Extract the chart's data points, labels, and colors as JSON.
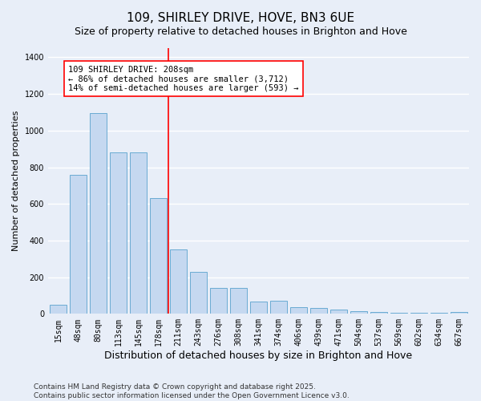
{
  "title": "109, SHIRLEY DRIVE, HOVE, BN3 6UE",
  "subtitle": "Size of property relative to detached houses in Brighton and Hove",
  "xlabel": "Distribution of detached houses by size in Brighton and Hove",
  "ylabel": "Number of detached properties",
  "categories": [
    "15sqm",
    "48sqm",
    "80sqm",
    "113sqm",
    "145sqm",
    "178sqm",
    "211sqm",
    "243sqm",
    "276sqm",
    "308sqm",
    "341sqm",
    "374sqm",
    "406sqm",
    "439sqm",
    "471sqm",
    "504sqm",
    "537sqm",
    "569sqm",
    "602sqm",
    "634sqm",
    "667sqm"
  ],
  "values": [
    50,
    760,
    1095,
    880,
    880,
    630,
    350,
    230,
    140,
    140,
    65,
    70,
    35,
    30,
    22,
    14,
    10,
    5,
    8,
    5,
    10
  ],
  "bar_color": "#c5d8f0",
  "bar_edge_color": "#6aabd2",
  "vline_index": 6,
  "vline_color": "red",
  "annotation_text": "109 SHIRLEY DRIVE: 208sqm\n← 86% of detached houses are smaller (3,712)\n14% of semi-detached houses are larger (593) →",
  "annotation_box_color": "white",
  "annotation_box_edge": "red",
  "background_color": "#e8eef8",
  "grid_color": "white",
  "footer": "Contains HM Land Registry data © Crown copyright and database right 2025.\nContains public sector information licensed under the Open Government Licence v3.0.",
  "ylim": [
    0,
    1450
  ],
  "title_fontsize": 11,
  "subtitle_fontsize": 9,
  "xlabel_fontsize": 9,
  "ylabel_fontsize": 8,
  "tick_fontsize": 7,
  "footer_fontsize": 6.5,
  "annotation_fontsize": 7.5
}
